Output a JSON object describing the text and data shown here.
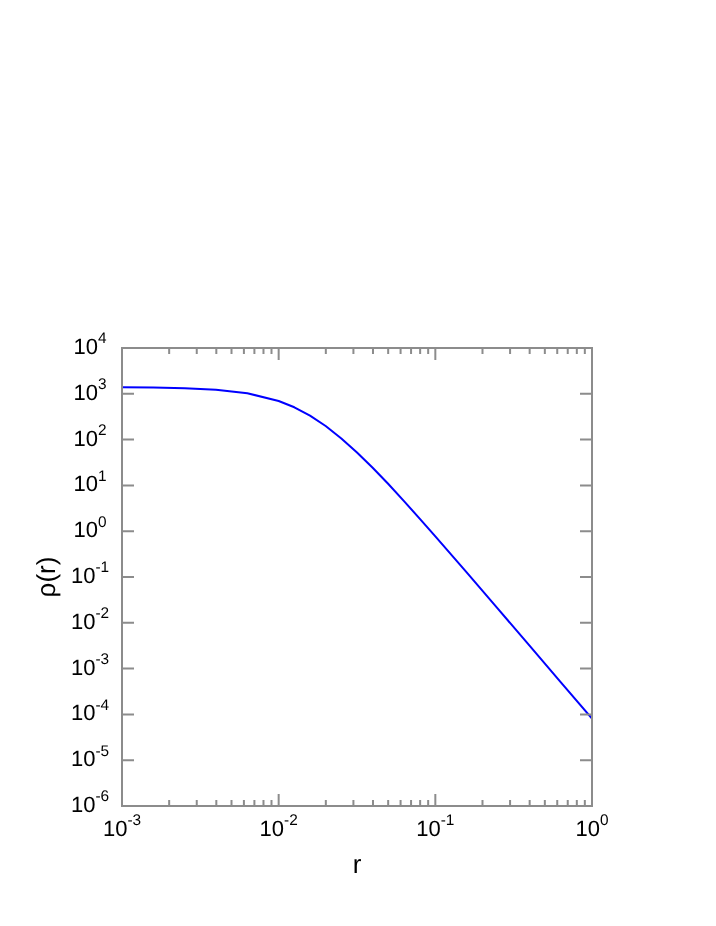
{
  "chart_data": {
    "type": "line",
    "xlabel": "r",
    "ylabel": "ρ(r)",
    "log": "xy",
    "grid": false,
    "legend": false,
    "marker": "none",
    "line_style": "solid",
    "x": [
      0.001,
      0.001585,
      0.002512,
      0.003981,
      0.00631,
      0.01,
      0.01259,
      0.01585,
      0.01995,
      0.02512,
      0.03162,
      0.03981,
      0.05012,
      0.0631,
      0.07943,
      0.1,
      0.1585,
      0.2512,
      0.3981,
      0.631,
      1
    ],
    "series": [
      {
        "color": "#0000ff",
        "values": [
          1388,
          1371,
          1329,
          1232,
          1030,
          698,
          508,
          335,
          198,
          106,
          52.5,
          24.3,
          10.7,
          4.54,
          1.88,
          0.771,
          0.126,
          0.0201,
          0.00321,
          0.000509,
          8.08e-05
        ]
      }
    ],
    "xlim": [
      0.001,
      1
    ],
    "ylim": [
      1e-06,
      10000
    ],
    "xticks": [
      {
        "value": 0.001,
        "label": "10$^{-3}$"
      },
      {
        "value": 0.01,
        "label": "10$^{-2}$"
      },
      {
        "value": 0.1,
        "label": "10$^{-1}$"
      },
      {
        "value": 1,
        "label": "10$^{0}$"
      },
      {
        "value": 0.002,
        "label": null
      },
      {
        "value": 0.003,
        "label": null
      },
      {
        "value": 0.004,
        "label": null
      },
      {
        "value": 0.005,
        "label": null
      },
      {
        "value": 0.006,
        "label": null
      },
      {
        "value": 0.007,
        "label": null
      },
      {
        "value": 0.008,
        "label": null
      },
      {
        "value": 0.009,
        "label": null
      },
      {
        "value": 0.02,
        "label": null
      },
      {
        "value": 0.03,
        "label": null
      },
      {
        "value": 0.04,
        "label": null
      },
      {
        "value": 0.05,
        "label": null
      },
      {
        "value": 0.06,
        "label": null
      },
      {
        "value": 0.07,
        "label": null
      },
      {
        "value": 0.08,
        "label": null
      },
      {
        "value": 0.09,
        "label": null
      },
      {
        "value": 0.2,
        "label": null
      },
      {
        "value": 0.3,
        "label": null
      },
      {
        "value": 0.4,
        "label": null
      },
      {
        "value": 0.5,
        "label": null
      },
      {
        "value": 0.6,
        "label": null
      },
      {
        "value": 0.7,
        "label": null
      },
      {
        "value": 0.8,
        "label": null
      },
      {
        "value": 0.9,
        "label": null
      }
    ],
    "yticks": [
      {
        "value": 1e-06,
        "label": "10$^{-6}$"
      },
      {
        "value": 1e-05,
        "label": "10$^{-5}$"
      },
      {
        "value": 0.0001,
        "label": "10$^{-4}$"
      },
      {
        "value": 0.001,
        "label": "10$^{-3}$"
      },
      {
        "value": 0.01,
        "label": "10$^{-2}$"
      },
      {
        "value": 0.1,
        "label": "10$^{-1}$"
      },
      {
        "value": 1,
        "label": "10$^{0}$"
      },
      {
        "value": 10,
        "label": "10$^{1}$"
      },
      {
        "value": 100,
        "label": "10$^{2}$"
      },
      {
        "value": 1000,
        "label": "10$^{3}$"
      },
      {
        "value": 10000,
        "label": "10$^{4}$"
      }
    ]
  }
}
